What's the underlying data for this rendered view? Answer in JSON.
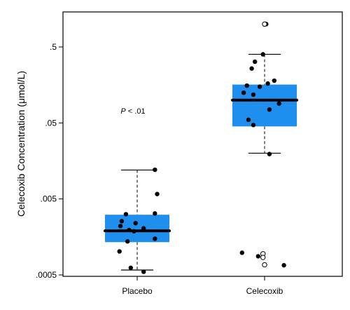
{
  "chart_data": {
    "type": "boxplot",
    "ylabel": "Celecoxib Concentration (μmol/L)",
    "yscale": "log",
    "ylim": [
      0.0005,
      1.3
    ],
    "yticks": [
      {
        "value": 0.0005,
        "label": ".0005"
      },
      {
        "value": 0.005,
        "label": ".005"
      },
      {
        "value": 0.05,
        "label": ".05"
      },
      {
        "value": 0.5,
        "label": ".5"
      }
    ],
    "categories": [
      "Placebo",
      "Celecoxib"
    ],
    "annotation": {
      "p_symbol": "P",
      "p_text": " < .01"
    },
    "colors": {
      "box_fill": "#1f8fef",
      "median": "#000000",
      "points": "#000000"
    },
    "groups": [
      {
        "name": "Placebo",
        "whisker_low": 0.00058,
        "q1": 0.00135,
        "median": 0.0019,
        "q3": 0.0031,
        "whisker_high": 0.012,
        "points": [
          {
            "y": 0.0121,
            "offset": 0.55,
            "open": false
          },
          {
            "y": 0.0058,
            "offset": 0.62,
            "open": false
          },
          {
            "y": 0.00322,
            "offset": 0.55,
            "open": false
          },
          {
            "y": 0.00315,
            "offset": -0.35,
            "open": false
          },
          {
            "y": 0.00255,
            "offset": -0.48,
            "open": false
          },
          {
            "y": 0.0024,
            "offset": -0.05,
            "open": false
          },
          {
            "y": 0.0022,
            "offset": -0.52,
            "open": false
          },
          {
            "y": 0.00205,
            "offset": 0.2,
            "open": false
          },
          {
            "y": 0.00195,
            "offset": -0.25,
            "open": false
          },
          {
            "y": 0.00188,
            "offset": -0.1,
            "open": false
          },
          {
            "y": 0.0015,
            "offset": 0.55,
            "open": false
          },
          {
            "y": 0.00138,
            "offset": -0.3,
            "open": false
          },
          {
            "y": 0.00102,
            "offset": -0.55,
            "open": false
          },
          {
            "y": 0.00062,
            "offset": -0.2,
            "open": false
          },
          {
            "y": 0.00055,
            "offset": 0.2,
            "open": false
          }
        ]
      },
      {
        "name": "Celecoxib",
        "whisker_low": 0.02,
        "q1": 0.045,
        "median": 0.1,
        "q3": 0.16,
        "whisker_high": 0.4,
        "points": [
          {
            "y": 1.0,
            "offset": 0.05,
            "open": false
          },
          {
            "y": 1.0,
            "offset": 0.0,
            "open": true
          },
          {
            "y": 0.4,
            "offset": -0.05,
            "open": false
          },
          {
            "y": 0.32,
            "offset": -0.3,
            "open": false
          },
          {
            "y": 0.26,
            "offset": -0.4,
            "open": false
          },
          {
            "y": 0.18,
            "offset": 0.3,
            "open": false
          },
          {
            "y": 0.165,
            "offset": 0.1,
            "open": false
          },
          {
            "y": 0.15,
            "offset": -0.15,
            "open": false
          },
          {
            "y": 0.155,
            "offset": -0.55,
            "open": false
          },
          {
            "y": 0.125,
            "offset": -0.65,
            "open": false
          },
          {
            "y": 0.118,
            "offset": -0.35,
            "open": false
          },
          {
            "y": 0.09,
            "offset": 0.45,
            "open": false
          },
          {
            "y": 0.075,
            "offset": 0.15,
            "open": false
          },
          {
            "y": 0.055,
            "offset": -0.5,
            "open": false
          },
          {
            "y": 0.047,
            "offset": -0.35,
            "open": false
          },
          {
            "y": 0.0195,
            "offset": 0.15,
            "open": false
          },
          {
            "y": 0.00098,
            "offset": -0.7,
            "open": false
          },
          {
            "y": 0.00088,
            "offset": -0.2,
            "open": false
          },
          {
            "y": 0.00095,
            "offset": -0.05,
            "open": true
          },
          {
            "y": 0.00085,
            "offset": -0.05,
            "open": true
          },
          {
            "y": 0.00068,
            "offset": 0.0,
            "open": true
          },
          {
            "y": 0.00067,
            "offset": 0.6,
            "open": false
          }
        ]
      }
    ]
  }
}
